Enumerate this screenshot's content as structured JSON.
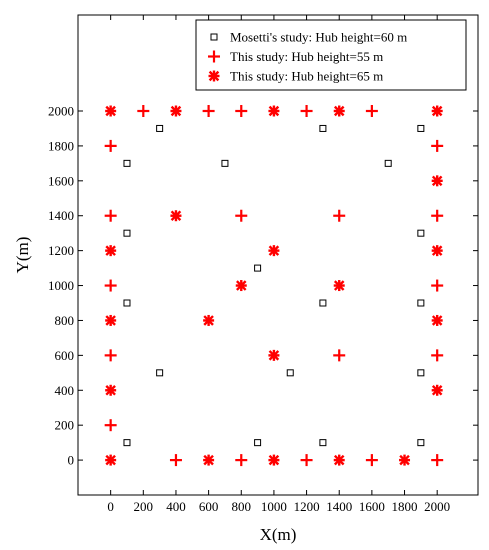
{
  "chart_data": {
    "type": "scatter",
    "title": "",
    "xlabel": "X(m)",
    "ylabel": "Y(m)",
    "xlim": [
      -200,
      2250
    ],
    "ylim": [
      -200,
      2550
    ],
    "xticks": [
      0,
      200,
      400,
      600,
      800,
      1000,
      1200,
      1400,
      1600,
      1800,
      2000
    ],
    "yticks": [
      0,
      200,
      400,
      600,
      800,
      1000,
      1200,
      1400,
      1600,
      1800,
      2000
    ],
    "grid": false,
    "legend_position": "top-right",
    "series": [
      {
        "name": "Mosetti's study: Hub height=60 m",
        "marker": "square",
        "color": "#000000",
        "points": [
          [
            300,
            1900
          ],
          [
            1300,
            1900
          ],
          [
            1900,
            1900
          ],
          [
            100,
            1700
          ],
          [
            700,
            1700
          ],
          [
            1700,
            1700
          ],
          [
            100,
            1300
          ],
          [
            1900,
            1300
          ],
          [
            900,
            1100
          ],
          [
            100,
            900
          ],
          [
            1300,
            900
          ],
          [
            1900,
            900
          ],
          [
            300,
            500
          ],
          [
            1100,
            500
          ],
          [
            1900,
            500
          ],
          [
            100,
            100
          ],
          [
            900,
            100
          ],
          [
            1300,
            100
          ],
          [
            1900,
            100
          ]
        ]
      },
      {
        "name": "This study: Hub height=55 m",
        "marker": "plus",
        "color": "#ff0000",
        "points": [
          [
            200,
            2000
          ],
          [
            600,
            2000
          ],
          [
            800,
            2000
          ],
          [
            1200,
            2000
          ],
          [
            1600,
            2000
          ],
          [
            0,
            1800
          ],
          [
            2000,
            1800
          ],
          [
            0,
            1400
          ],
          [
            800,
            1400
          ],
          [
            1400,
            1400
          ],
          [
            2000,
            1400
          ],
          [
            0,
            1000
          ],
          [
            2000,
            1000
          ],
          [
            0,
            600
          ],
          [
            1400,
            600
          ],
          [
            2000,
            600
          ],
          [
            0,
            200
          ],
          [
            400,
            0
          ],
          [
            800,
            0
          ],
          [
            1200,
            0
          ],
          [
            1600,
            0
          ],
          [
            2000,
            0
          ]
        ]
      },
      {
        "name": "This study: Hub height=65 m",
        "marker": "asterisk",
        "color": "#ff0000",
        "points": [
          [
            0,
            2000
          ],
          [
            400,
            2000
          ],
          [
            1000,
            2000
          ],
          [
            1400,
            2000
          ],
          [
            2000,
            2000
          ],
          [
            2000,
            1600
          ],
          [
            400,
            1400
          ],
          [
            0,
            1200
          ],
          [
            1000,
            1200
          ],
          [
            2000,
            1200
          ],
          [
            800,
            1000
          ],
          [
            1400,
            1000
          ],
          [
            0,
            800
          ],
          [
            600,
            800
          ],
          [
            2000,
            800
          ],
          [
            1000,
            600
          ],
          [
            0,
            400
          ],
          [
            2000,
            400
          ],
          [
            0,
            0
          ],
          [
            600,
            0
          ],
          [
            1000,
            0
          ],
          [
            1400,
            0
          ],
          [
            1800,
            0
          ]
        ]
      }
    ]
  }
}
